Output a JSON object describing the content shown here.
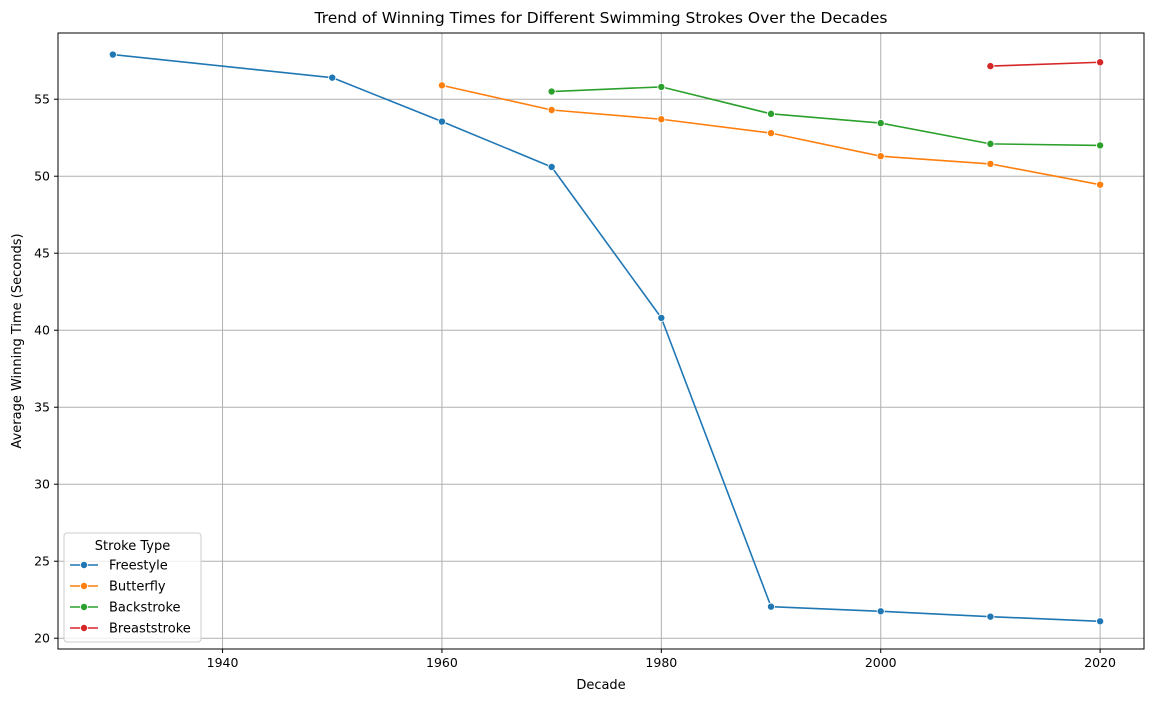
{
  "chart_data": {
    "type": "line",
    "title": "Trend of Winning Times for Different Swimming Strokes Over the Decades",
    "xlabel": "Decade",
    "ylabel": "Average Winning Time (Seconds)",
    "xlim": [
      1925,
      2024
    ],
    "ylim": [
      19.3,
      59.3
    ],
    "xticks": [
      1940,
      1960,
      1980,
      2000,
      2020
    ],
    "yticks": [
      20,
      25,
      30,
      35,
      40,
      45,
      50,
      55
    ],
    "grid": true,
    "legend": {
      "title": "Stroke Type",
      "position": "lower-left"
    },
    "series": [
      {
        "name": "Freestyle",
        "color": "#1f77b4",
        "x": [
          1930,
          1950,
          1960,
          1970,
          1980,
          1990,
          2000,
          2010,
          2020
        ],
        "values": [
          57.9,
          56.4,
          53.55,
          50.6,
          40.8,
          22.05,
          21.75,
          21.4,
          21.1
        ]
      },
      {
        "name": "Butterfly",
        "color": "#ff7f0e",
        "x": [
          1960,
          1970,
          1980,
          1990,
          2000,
          2010,
          2020
        ],
        "values": [
          55.9,
          54.3,
          53.7,
          52.8,
          51.3,
          50.8,
          49.45
        ]
      },
      {
        "name": "Backstroke",
        "color": "#2ca02c",
        "x": [
          1970,
          1980,
          1990,
          2000,
          2010,
          2020
        ],
        "values": [
          55.5,
          55.8,
          54.05,
          53.45,
          52.1,
          52.0
        ]
      },
      {
        "name": "Breaststroke",
        "color": "#d62728",
        "x": [
          2010,
          2020
        ],
        "values": [
          57.15,
          57.4
        ]
      }
    ]
  }
}
